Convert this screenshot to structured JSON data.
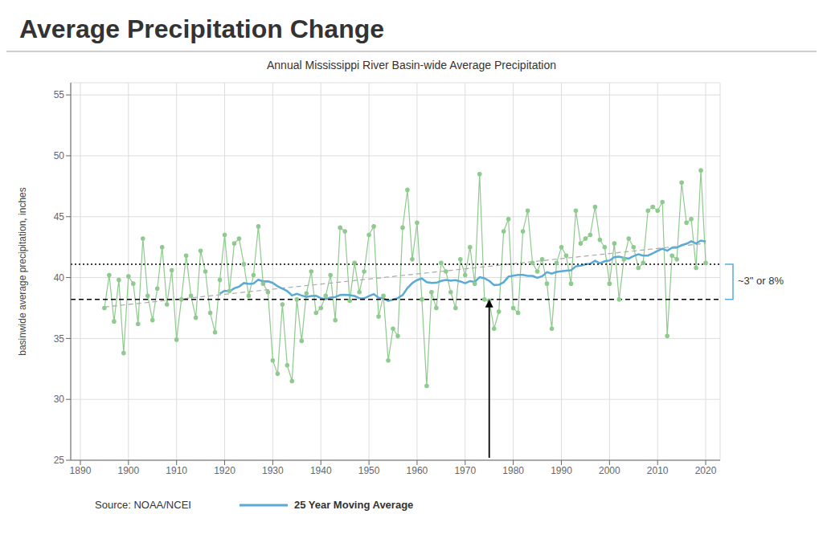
{
  "chart_data": {
    "type": "line",
    "title": "Average Precipitation Change",
    "subtitle": "Annual Mississippi River Basin-wide Average Precipitation",
    "y_label": "basinwide average precipitation, inches",
    "source": "Source: NOAA/NCEI",
    "xlim": [
      1888,
      2023
    ],
    "xticks": [
      1890,
      1900,
      1910,
      1920,
      1930,
      1940,
      1950,
      1960,
      1970,
      1980,
      1990,
      2000,
      2010,
      2020
    ],
    "ylim": [
      25,
      56
    ],
    "yticks": [
      25,
      30,
      35,
      40,
      45,
      50,
      55
    ],
    "grid": true,
    "legend": "bottom",
    "series": [
      {
        "color": "#8fca8f",
        "marker": "circle",
        "line_style": "solid",
        "x": [
          1895,
          1896,
          1897,
          1898,
          1899,
          1900,
          1901,
          1902,
          1903,
          1904,
          1905,
          1906,
          1907,
          1908,
          1909,
          1910,
          1911,
          1912,
          1913,
          1914,
          1915,
          1916,
          1917,
          1918,
          1919,
          1920,
          1921,
          1922,
          1923,
          1924,
          1925,
          1926,
          1927,
          1928,
          1929,
          1930,
          1931,
          1932,
          1933,
          1934,
          1935,
          1936,
          1937,
          1938,
          1939,
          1940,
          1941,
          1942,
          1943,
          1944,
          1945,
          1946,
          1947,
          1948,
          1949,
          1950,
          1951,
          1952,
          1953,
          1954,
          1955,
          1956,
          1957,
          1958,
          1959,
          1960,
          1961,
          1962,
          1963,
          1964,
          1965,
          1966,
          1967,
          1968,
          1969,
          1970,
          1971,
          1972,
          1973,
          1974,
          1975,
          1976,
          1977,
          1978,
          1979,
          1980,
          1981,
          1982,
          1983,
          1984,
          1985,
          1986,
          1987,
          1988,
          1989,
          1990,
          1991,
          1992,
          1993,
          1994,
          1995,
          1996,
          1997,
          1998,
          1999,
          2000,
          2001,
          2002,
          2003,
          2004,
          2005,
          2006,
          2007,
          2008,
          2009,
          2010,
          2011,
          2012,
          2013,
          2014,
          2015,
          2016,
          2017,
          2018,
          2019,
          2020
        ],
        "values": [
          37.5,
          40.2,
          36.4,
          39.8,
          33.8,
          40.1,
          39.5,
          36.2,
          43.2,
          38.5,
          36.5,
          39.1,
          42.5,
          37.8,
          40.6,
          34.9,
          38.2,
          41.8,
          38.5,
          36.7,
          42.2,
          40.5,
          37.1,
          35.5,
          39.8,
          43.5,
          38.9,
          42.8,
          43.2,
          41.1,
          38.5,
          40.2,
          44.2,
          39.5,
          38.8,
          33.2,
          32.1,
          37.8,
          32.8,
          31.5,
          38.2,
          34.8,
          38.7,
          40.5,
          37.1,
          37.5,
          38.5,
          40.2,
          36.5,
          44.1,
          43.8,
          38.1,
          41.2,
          38.8,
          40.5,
          43.5,
          44.2,
          36.8,
          38.5,
          33.2,
          35.8,
          35.2,
          44.1,
          47.2,
          41.5,
          44.5,
          38.2,
          31.1,
          38.8,
          37.5,
          41.2,
          40.5,
          38.8,
          37.5,
          41.5,
          40.2,
          42.5,
          39.5,
          48.5,
          38.2,
          38.1,
          35.8,
          37.2,
          43.8,
          44.8,
          37.5,
          37.1,
          43.8,
          45.5,
          41.2,
          40.5,
          41.5,
          39.5,
          35.8,
          41.2,
          42.5,
          41.8,
          39.5,
          45.5,
          42.8,
          43.2,
          43.5,
          45.8,
          43.1,
          42.5,
          39.5,
          42.8,
          38.2,
          41.5,
          43.2,
          42.5,
          40.8,
          41.2,
          45.5,
          45.8,
          45.5,
          46.2,
          35.2,
          41.8,
          41.5,
          47.8,
          44.5,
          44.8,
          40.8,
          48.8,
          41.2
        ]
      },
      {
        "color": "#aaaaaa",
        "marker": "none",
        "line_style": "dashed",
        "x": [
          1895,
          2020
        ],
        "values": [
          37.581815,
          42.808661
        ]
      },
      {
        "name": "25 Year Moving Average",
        "color": "#5aaad8",
        "marker": "none",
        "line_style": "solid",
        "x": [
          1919,
          1920,
          1921,
          1922,
          1923,
          1924,
          1925,
          1926,
          1927,
          1928,
          1929,
          1930,
          1931,
          1932,
          1933,
          1934,
          1935,
          1936,
          1937,
          1938,
          1939,
          1940,
          1941,
          1942,
          1943,
          1944,
          1945,
          1946,
          1947,
          1948,
          1949,
          1950,
          1951,
          1952,
          1953,
          1954,
          1955,
          1956,
          1957,
          1958,
          1959,
          1960,
          1961,
          1962,
          1963,
          1964,
          1965,
          1966,
          1967,
          1968,
          1969,
          1970,
          1971,
          1972,
          1973,
          1974,
          1975,
          1976,
          1977,
          1978,
          1979,
          1980,
          1981,
          1982,
          1983,
          1984,
          1985,
          1986,
          1987,
          1988,
          1989,
          1990,
          1991,
          1992,
          1993,
          1994,
          1995,
          1996,
          1997,
          1998,
          1999,
          2000,
          2001,
          2002,
          2003,
          2004,
          2005,
          2006,
          2007,
          2008,
          2009,
          2010,
          2011,
          2012,
          2013,
          2014,
          2015,
          2016,
          2017,
          2018,
          2019,
          2020
        ],
        "values": [
          38.676,
          38.916,
          38.864,
          39.12,
          39.256,
          39.548,
          39.484,
          39.512,
          39.832,
          39.684,
          39.696,
          39.564,
          39.284,
          39.096,
          38.896,
          38.532,
          38.664,
          38.528,
          38.404,
          38.484,
          38.5,
          38.312,
          38.232,
          38.356,
          38.396,
          38.568,
          38.58,
          38.548,
          38.484,
          38.308,
          38.284,
          38.484,
          38.644,
          38.348,
          38.308,
          38.084,
          38.188,
          38.312,
          38.564,
          39.14,
          39.54,
          39.792,
          39.928,
          39.624,
          39.556,
          39.572,
          39.72,
          39.8,
          39.744,
          39.784,
          39.68,
          39.536,
          39.712,
          39.644,
          40.032,
          39.94,
          39.724,
          39.388,
          39.404,
          39.616,
          40.08,
          40.148,
          40.224,
          40.212,
          40.144,
          40.132,
          39.972,
          40.104,
          40.44,
          40.32,
          40.468,
          40.52,
          40.572,
          40.6,
          40.92,
          40.972,
          41.092,
          41.132,
          41.384,
          41.168,
          41.34,
          41.396,
          41.676,
          41.716,
          41.624,
          41.56,
          41.76,
          41.908,
          41.804,
          41.804,
          41.988,
          42.188,
          42.376,
          42.204,
          42.444,
          42.456,
          42.668,
          42.776,
          42.988,
          42.8,
          43.04,
          42.96
        ]
      }
    ],
    "reference_lines": [
      {
        "y": 38.2,
        "color": "#000000",
        "line_style": "dashed"
      },
      {
        "y": 41.1,
        "color": "#000000",
        "line_style": "dotted"
      }
    ],
    "arrow": {
      "x": 1975,
      "y_from": 25.2,
      "y_to": 38.2,
      "color": "#000000"
    },
    "annotation": {
      "text": "~3\" or 8%",
      "y_from": 38.2,
      "y_to": 41.1,
      "color": "#5aaad8"
    }
  }
}
